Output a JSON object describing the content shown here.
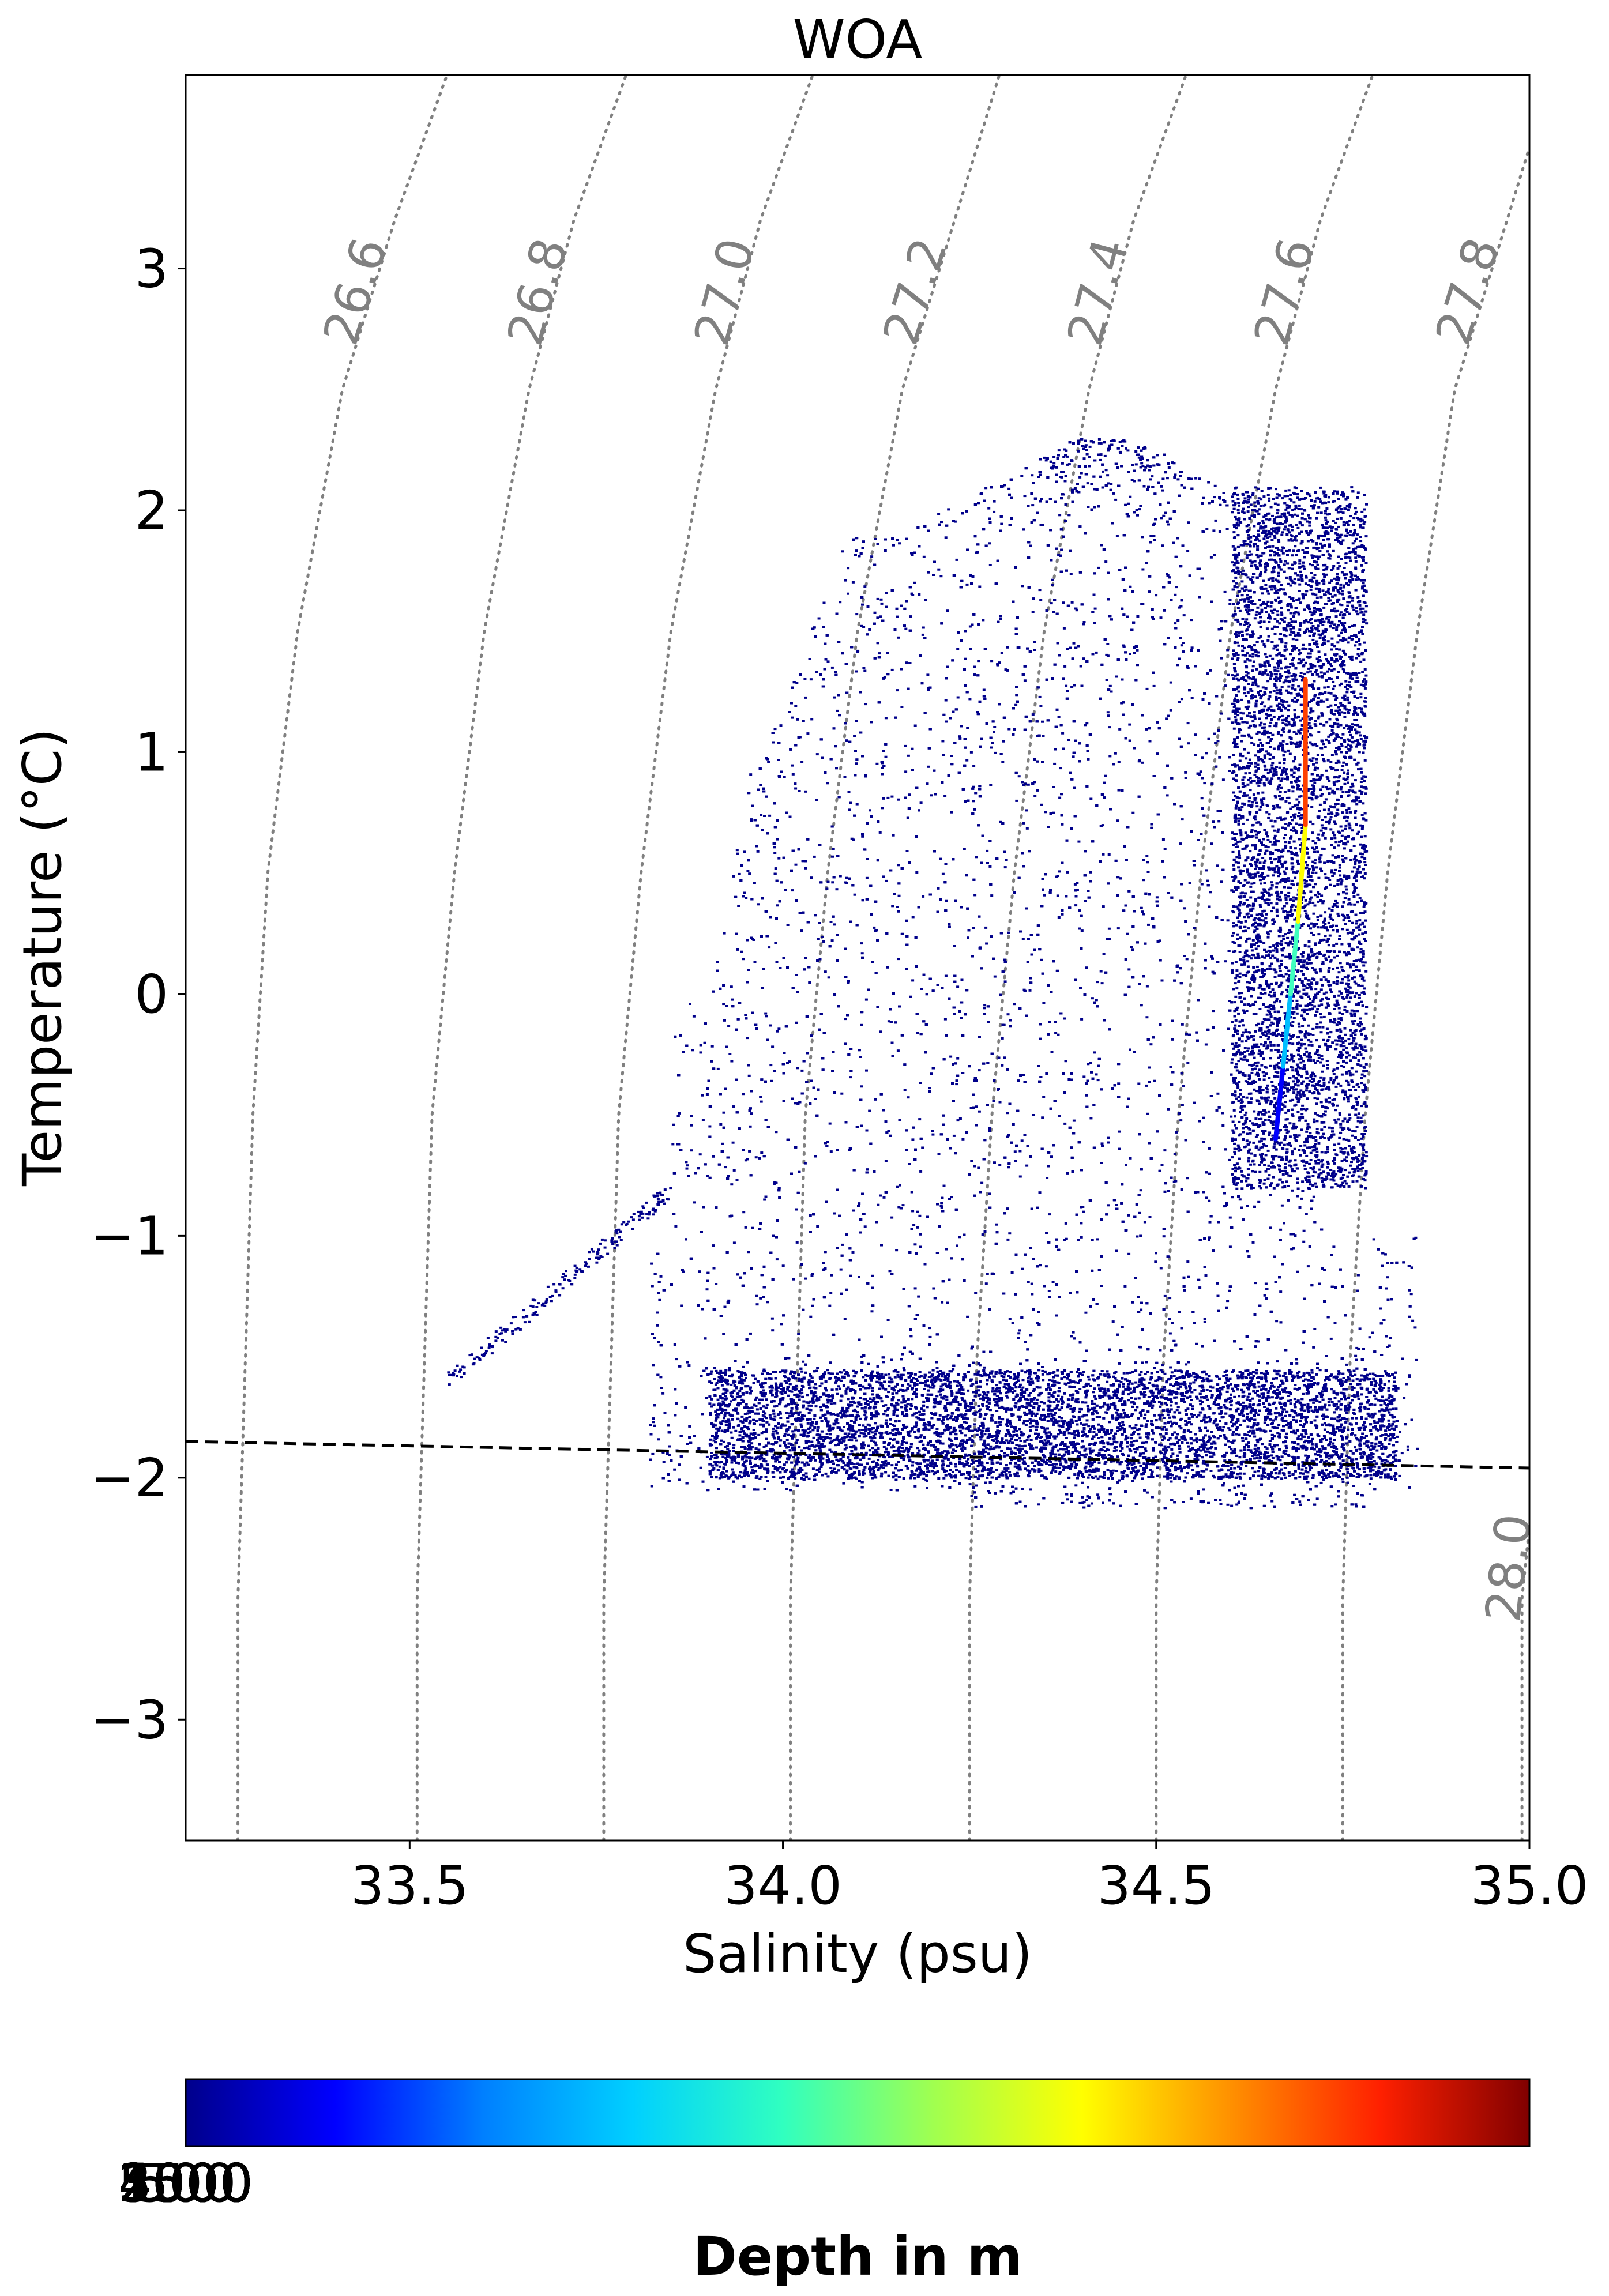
{
  "chart_data": {
    "type": "scatter",
    "title": "WOA",
    "xlabel": "Salinity (psu)",
    "ylabel": "Temperature (°C)",
    "xlim": [
      33.2,
      35.0
    ],
    "ylim": [
      -3.5,
      3.8
    ],
    "xticks": [
      {
        "value": 33.5,
        "label": "33.5"
      },
      {
        "value": 34.0,
        "label": "34.0"
      },
      {
        "value": 34.5,
        "label": "34.5"
      },
      {
        "value": 35.0,
        "label": "35.0"
      }
    ],
    "yticks": [
      {
        "value": 3,
        "label": "3"
      },
      {
        "value": 2,
        "label": "2"
      },
      {
        "value": 1,
        "label": "1"
      },
      {
        "value": 0,
        "label": "0"
      },
      {
        "value": -1,
        "label": "−1"
      },
      {
        "value": -2,
        "label": "−2"
      },
      {
        "value": -3,
        "label": "−3"
      }
    ],
    "isopycnals": [
      {
        "label": "26.6",
        "points": [
          [
            33.27,
            -3.5
          ],
          [
            33.27,
            -2.5
          ],
          [
            33.28,
            -1.5
          ],
          [
            33.29,
            -0.5
          ],
          [
            33.31,
            0.5
          ],
          [
            33.35,
            1.5
          ],
          [
            33.41,
            2.5
          ],
          [
            33.48,
            3.2
          ],
          [
            33.55,
            3.8
          ]
        ]
      },
      {
        "label": "26.8",
        "points": [
          [
            33.51,
            -3.5
          ],
          [
            33.51,
            -2.5
          ],
          [
            33.52,
            -1.5
          ],
          [
            33.53,
            -0.5
          ],
          [
            33.56,
            0.5
          ],
          [
            33.6,
            1.5
          ],
          [
            33.66,
            2.5
          ],
          [
            33.72,
            3.2
          ],
          [
            33.79,
            3.8
          ]
        ]
      },
      {
        "label": "27.0",
        "points": [
          [
            33.76,
            -3.5
          ],
          [
            33.76,
            -2.5
          ],
          [
            33.77,
            -1.5
          ],
          [
            33.78,
            -0.5
          ],
          [
            33.81,
            0.5
          ],
          [
            33.85,
            1.5
          ],
          [
            33.91,
            2.5
          ],
          [
            33.97,
            3.2
          ],
          [
            34.04,
            3.8
          ]
        ]
      },
      {
        "label": "27.2",
        "points": [
          [
            34.01,
            -3.5
          ],
          [
            34.01,
            -2.5
          ],
          [
            34.02,
            -1.5
          ],
          [
            34.03,
            -0.5
          ],
          [
            34.06,
            0.5
          ],
          [
            34.1,
            1.5
          ],
          [
            34.16,
            2.5
          ],
          [
            34.23,
            3.2
          ],
          [
            34.29,
            3.8
          ]
        ]
      },
      {
        "label": "27.4",
        "points": [
          [
            34.25,
            -3.5
          ],
          [
            34.25,
            -2.5
          ],
          [
            34.26,
            -1.5
          ],
          [
            34.28,
            -0.5
          ],
          [
            34.31,
            0.5
          ],
          [
            34.35,
            1.5
          ],
          [
            34.41,
            2.5
          ],
          [
            34.47,
            3.2
          ],
          [
            34.54,
            3.8
          ]
        ]
      },
      {
        "label": "27.6",
        "points": [
          [
            34.5,
            -3.5
          ],
          [
            34.5,
            -2.5
          ],
          [
            34.51,
            -1.5
          ],
          [
            34.53,
            -0.5
          ],
          [
            34.56,
            0.5
          ],
          [
            34.6,
            1.5
          ],
          [
            34.66,
            2.5
          ],
          [
            34.72,
            3.2
          ],
          [
            34.79,
            3.8
          ]
        ]
      },
      {
        "label": "27.8",
        "points": [
          [
            34.75,
            -3.5
          ],
          [
            34.75,
            -2.5
          ],
          [
            34.76,
            -1.5
          ],
          [
            34.78,
            -0.5
          ],
          [
            34.81,
            0.5
          ],
          [
            34.85,
            1.5
          ],
          [
            34.9,
            2.5
          ],
          [
            34.97,
            3.2
          ],
          [
            35.0,
            3.5
          ]
        ]
      },
      {
        "label": "28.0",
        "points": [
          [
            34.99,
            -3.5
          ],
          [
            34.99,
            -2.5
          ],
          [
            35.0,
            -2.2
          ]
        ]
      }
    ],
    "freezing_line": {
      "points": [
        [
          33.2,
          -1.85
        ],
        [
          35.0,
          -1.96
        ]
      ],
      "style": "dashed",
      "color": "#000000"
    },
    "scatter_color": "#00008b",
    "highlight_ridge": {
      "description_colors": [
        "#00008b",
        "#0000ff",
        "#00bfff",
        "#40ffbf",
        "#ffff00",
        "#ff4000"
      ],
      "points": [
        [
          34.66,
          -0.6
        ],
        [
          34.67,
          -0.3
        ],
        [
          34.68,
          0.0
        ],
        [
          34.69,
          0.3
        ],
        [
          34.7,
          0.7
        ],
        [
          34.7,
          1.0
        ],
        [
          34.7,
          1.3
        ]
      ]
    },
    "colorbar": {
      "label": "Depth in m",
      "colors": [
        "#00008b",
        "#0000ff",
        "#0080ff",
        "#00d0ff",
        "#30ffc0",
        "#a0ff50",
        "#ffff00",
        "#ff9000",
        "#ff2000",
        "#800000"
      ],
      "tick_labels": [
        "0",
        "500",
        "1000",
        "1500",
        "2000",
        "2500",
        "3000",
        "3500",
        "4000",
        "4500",
        "5000"
      ]
    },
    "grid": false
  }
}
